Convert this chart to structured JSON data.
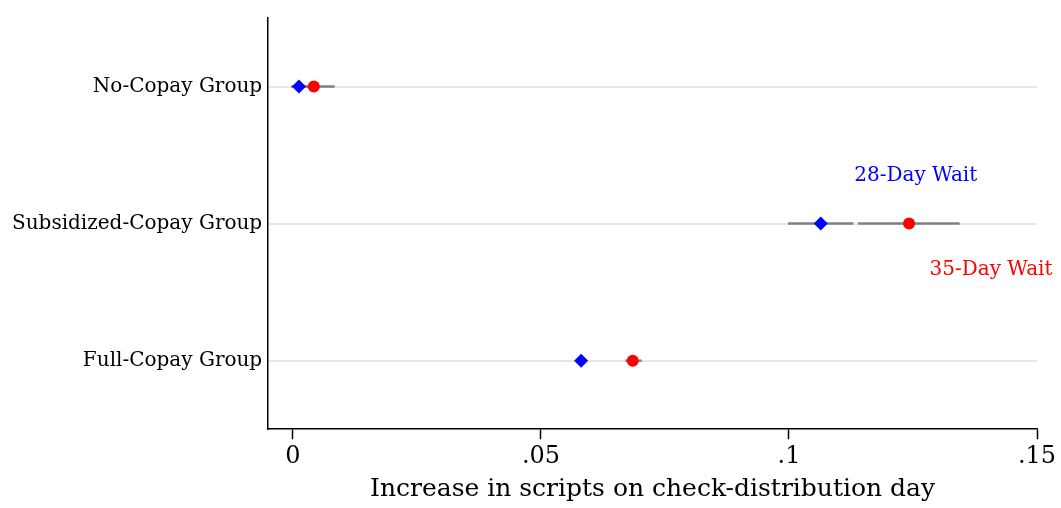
{
  "chart_data": {
    "type": "scatter",
    "orientation": "horizontal",
    "categories": [
      "No-Copay Group",
      "Subsidized-Copay Group",
      "Full-Copay Group"
    ],
    "xlabel": "Increase in scripts on check-distribution day",
    "xlim": [
      -0.005,
      0.15
    ],
    "xticks": [
      {
        "value": 0,
        "label": "0"
      },
      {
        "value": 0.05,
        "label": ".05"
      },
      {
        "value": 0.1,
        "label": ".1"
      },
      {
        "value": 0.15,
        "label": ".15"
      }
    ],
    "grid": "y",
    "legend": false,
    "series": [
      {
        "name": "28-Day Wait",
        "color": "#0000ff",
        "marker": "diamond",
        "values": [
          0.0012,
          0.1064,
          0.0581
        ],
        "errors": [
          [
            -0.0004,
            0.003
          ],
          [
            0.0998,
            0.113
          ],
          null
        ]
      },
      {
        "name": "35-Day Wait",
        "color": "#ff0000",
        "marker": "circle",
        "values": [
          0.0042,
          0.1242,
          0.0685
        ],
        "errors": [
          [
            0.0015,
            0.0084
          ],
          [
            0.1139,
            0.1344
          ],
          [
            0.067,
            0.0703
          ]
        ]
      }
    ]
  }
}
